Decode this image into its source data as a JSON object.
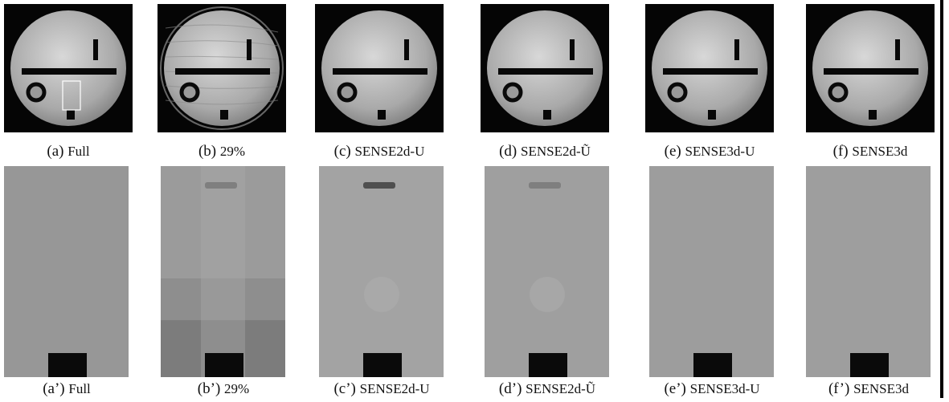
{
  "figure": {
    "top": [
      {
        "label": "(a)",
        "name": "Full"
      },
      {
        "label": "(b)",
        "name": "29%"
      },
      {
        "label": "(c)",
        "name": "SENSE2d-U"
      },
      {
        "label": "(d)",
        "name": "SENSE2d-Ũ"
      },
      {
        "label": "(e)",
        "name": "SENSE3d-U"
      },
      {
        "label": "(f)",
        "name": "SENSE3d"
      }
    ],
    "bottom": [
      {
        "label": "(a’)",
        "name": "Full"
      },
      {
        "label": "(b’)",
        "name": "29%"
      },
      {
        "label": "(c’)",
        "name": "SENSE2d-U"
      },
      {
        "label": "(d’)",
        "name": "SENSE2d-Ũ"
      },
      {
        "label": "(e’)",
        "name": "SENSE3d-U"
      },
      {
        "label": "(f’)",
        "name": "SENSE3d"
      }
    ]
  }
}
